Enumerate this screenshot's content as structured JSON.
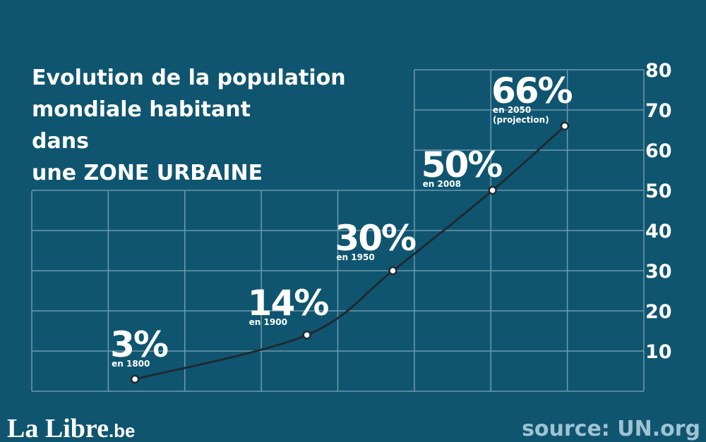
{
  "chart_data": {
    "type": "line",
    "title_lines": [
      "Evolution de la population",
      "mondiale habitant",
      "dans",
      "une ZONE URBAINE"
    ],
    "x": [
      1800,
      1900,
      1950,
      2008,
      2050
    ],
    "series": [
      {
        "color": "#1e2a30",
        "values": [
          3,
          14,
          30,
          50,
          66
        ],
        "value_labels": [
          "3%",
          "14%",
          "30%",
          "50%",
          "66%"
        ]
      }
    ],
    "annotations": [
      [
        "en 1800"
      ],
      [
        "en 1900"
      ],
      [
        "en 1950"
      ],
      [
        "en 2008"
      ],
      [
        "en 2050",
        "(projection)"
      ]
    ],
    "xlim": [
      1740,
      2096
    ],
    "ylim": [
      0,
      80
    ],
    "yticks": [
      10,
      20,
      30,
      40,
      50,
      60,
      70,
      80
    ],
    "grid": true,
    "logo": "La Libre",
    "logo_suffix": ".be",
    "source": "source: UN.org"
  }
}
